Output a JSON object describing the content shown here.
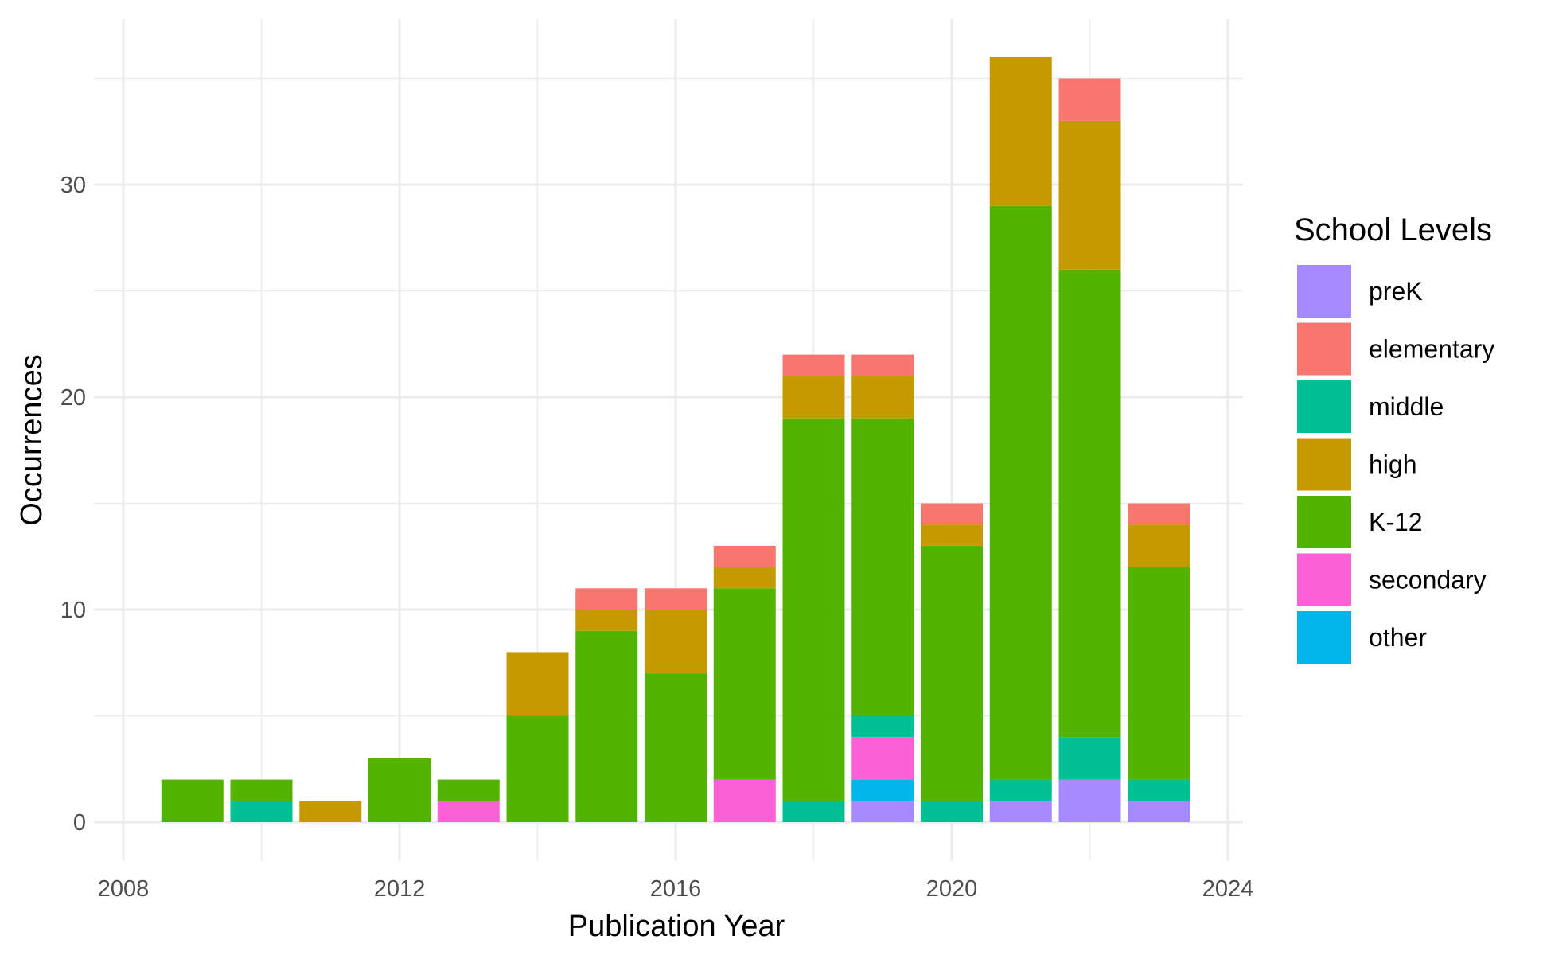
{
  "chart_data": {
    "type": "bar",
    "stacked": true,
    "xlabel": "Publication Year",
    "ylabel": "Occurrences",
    "x": [
      2009,
      2010,
      2011,
      2012,
      2013,
      2014,
      2015,
      2016,
      2017,
      2018,
      2019,
      2020,
      2021,
      2022,
      2023
    ],
    "xlim": [
      2008,
      2024
    ],
    "ylim": [
      0,
      36
    ],
    "x_ticks": [
      2008,
      2012,
      2016,
      2020,
      2024
    ],
    "y_ticks": [
      0,
      10,
      20,
      30
    ],
    "grid": true,
    "legend_title": "School Levels",
    "legend_position": "right",
    "stack_order_bottom_to_top": [
      "preK",
      "other",
      "secondary",
      "middle",
      "K-12",
      "high",
      "elementary"
    ],
    "series": [
      {
        "name": "preK",
        "color": "#A58AFF",
        "values": [
          0,
          0,
          0,
          0,
          0,
          0,
          0,
          0,
          0,
          0,
          1,
          0,
          1,
          2,
          1
        ]
      },
      {
        "name": "elementary",
        "color": "#F8766D",
        "values": [
          0,
          0,
          0,
          0,
          0,
          0,
          1,
          1,
          1,
          1,
          1,
          1,
          0,
          2,
          1
        ]
      },
      {
        "name": "middle",
        "color": "#00C094",
        "values": [
          0,
          1,
          0,
          0,
          0,
          0,
          0,
          0,
          0,
          1,
          1,
          1,
          1,
          2,
          1
        ]
      },
      {
        "name": "high",
        "color": "#C49A00",
        "values": [
          0,
          0,
          1,
          0,
          0,
          3,
          1,
          3,
          1,
          2,
          2,
          1,
          7,
          7,
          2
        ]
      },
      {
        "name": "K-12",
        "color": "#53B400",
        "values": [
          2,
          1,
          0,
          3,
          1,
          5,
          9,
          7,
          9,
          18,
          14,
          12,
          27,
          22,
          10
        ]
      },
      {
        "name": "secondary",
        "color": "#FB61D7",
        "values": [
          0,
          0,
          0,
          0,
          1,
          0,
          0,
          0,
          2,
          0,
          2,
          0,
          0,
          0,
          0
        ]
      },
      {
        "name": "other",
        "color": "#00B6EB",
        "values": [
          0,
          0,
          0,
          0,
          0,
          0,
          0,
          0,
          0,
          0,
          1,
          0,
          0,
          0,
          0
        ]
      }
    ]
  }
}
